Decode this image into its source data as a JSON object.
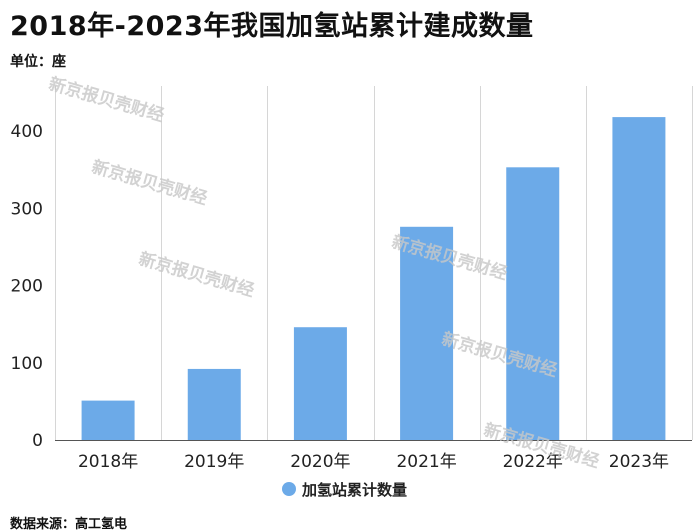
{
  "title": "2018年-2023年我国加氢站累计建成数量",
  "unit_label": "单位：座",
  "source_label": "数据来源：高工氢电",
  "watermark_text": "新京报贝壳财经",
  "chart_data": {
    "type": "bar",
    "categories": [
      "2018年",
      "2019年",
      "2020年",
      "2021年",
      "2022年",
      "2023年"
    ],
    "series": [
      {
        "name": "加氢站累计数量",
        "values": [
          51,
          92,
          146,
          276,
          353,
          418
        ]
      }
    ],
    "ylim": [
      0,
      400
    ],
    "yticks": [
      0,
      100,
      200,
      300,
      400
    ],
    "xlabel": "",
    "ylabel": "",
    "grid": "vertical",
    "legend": "bottom-center",
    "colors": {
      "bar": "#6caae8",
      "grid": "#d6d6d6",
      "axis": "#555555"
    }
  }
}
